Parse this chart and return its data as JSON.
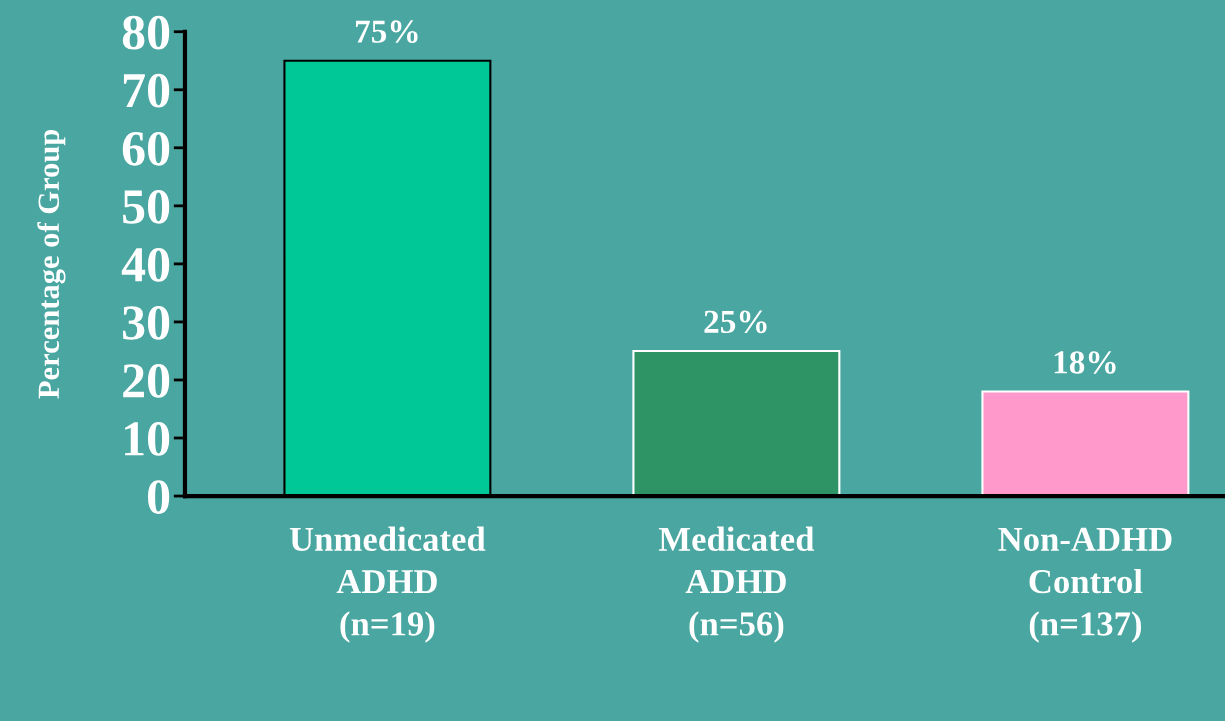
{
  "chart_data": {
    "type": "bar",
    "ylabel": "Percentage of Group",
    "categories": [
      "Unmedicated\nADHD\n(n=19)",
      "Medicated\nADHD\n(n=56)",
      "Non-ADHD\nControl\n(n=137)"
    ],
    "values": [
      75,
      25,
      18
    ],
    "colors": [
      "#00c896",
      "#2e9466",
      "#ff99cc"
    ],
    "value_labels": [
      "75%",
      "25%",
      "18%"
    ],
    "ylim": [
      0,
      80
    ],
    "yticks": [
      0,
      10,
      20,
      30,
      40,
      50,
      60,
      70,
      80
    ],
    "grid": false
  }
}
